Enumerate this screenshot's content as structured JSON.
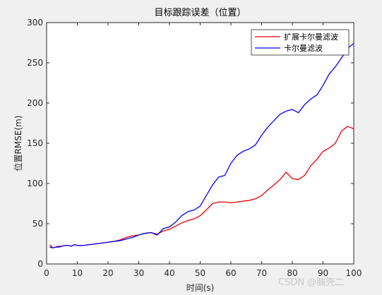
{
  "chart_data": {
    "type": "line",
    "title": "目标跟踪误差（位置）",
    "xlabel": "时间(s)",
    "ylabel": "位置RMSE(m)",
    "xlim": [
      0,
      100
    ],
    "ylim": [
      0,
      300
    ],
    "xticks": [
      0,
      10,
      20,
      30,
      40,
      50,
      60,
      70,
      80,
      90,
      100
    ],
    "yticks": [
      0,
      50,
      100,
      150,
      200,
      250,
      300
    ],
    "grid": false,
    "legend_position": "top-right",
    "series": [
      {
        "name": "扩展卡尔曼滤波",
        "color": "#e8000b",
        "x": [
          1,
          2,
          3,
          4,
          5,
          6,
          7,
          8,
          9,
          10,
          12,
          14,
          16,
          18,
          20,
          22,
          24,
          26,
          28,
          30,
          32,
          34,
          36,
          38,
          40,
          42,
          44,
          46,
          48,
          50,
          52,
          54,
          56,
          58,
          60,
          62,
          64,
          66,
          68,
          70,
          72,
          74,
          76,
          78,
          80,
          82,
          84,
          86,
          88,
          90,
          92,
          94,
          96,
          98,
          100
        ],
        "values": [
          24,
          20,
          21,
          22,
          22,
          23,
          23,
          22,
          24,
          23,
          23,
          24,
          25,
          26,
          27,
          28,
          30,
          33,
          35,
          36,
          38,
          39,
          37,
          41,
          43,
          47,
          51,
          54,
          56,
          60,
          67,
          75,
          77,
          77,
          76,
          77,
          78,
          79,
          81,
          85,
          92,
          98,
          105,
          114,
          106,
          105,
          110,
          122,
          130,
          140,
          144,
          150,
          165,
          171,
          168
        ]
      },
      {
        "name": "卡尔曼滤波",
        "color": "#0000ff",
        "x": [
          1,
          2,
          3,
          4,
          5,
          6,
          7,
          8,
          9,
          10,
          12,
          14,
          16,
          18,
          20,
          22,
          24,
          26,
          28,
          30,
          32,
          34,
          36,
          38,
          40,
          42,
          44,
          46,
          48,
          50,
          52,
          54,
          56,
          58,
          60,
          62,
          64,
          66,
          68,
          70,
          72,
          74,
          76,
          78,
          80,
          82,
          84,
          86,
          88,
          90,
          92,
          94,
          96,
          98,
          100
        ],
        "values": [
          21,
          20,
          21,
          21,
          22,
          23,
          23,
          22,
          24,
          23,
          23,
          24,
          25,
          26,
          27,
          28,
          29,
          31,
          33,
          36,
          38,
          39,
          36,
          44,
          46,
          52,
          60,
          65,
          67,
          72,
          85,
          98,
          108,
          110,
          125,
          135,
          140,
          143,
          148,
          160,
          170,
          178,
          186,
          190,
          192,
          188,
          198,
          205,
          210,
          222,
          236,
          245,
          256,
          268,
          274
        ]
      }
    ]
  },
  "watermark": "CSDN @脑壳二"
}
